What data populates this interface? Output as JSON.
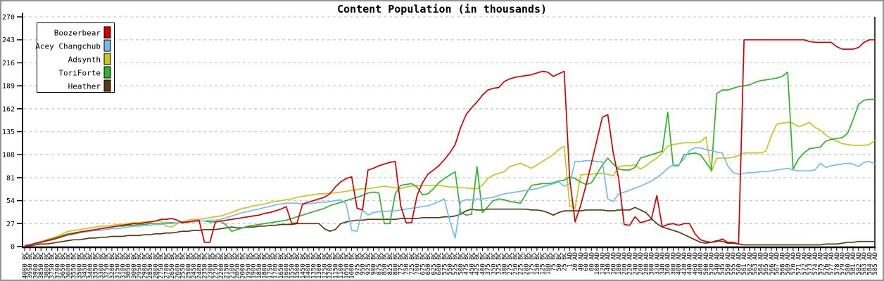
{
  "chart_data": {
    "type": "line",
    "title": "Content Population (in thousands)",
    "xlabel": "",
    "ylabel": "",
    "ylim": [
      0,
      270
    ],
    "y_ticks": [
      0,
      27,
      54,
      81,
      108,
      135,
      162,
      189,
      216,
      243,
      270
    ],
    "grid": true,
    "legend_position": "top-left",
    "grid_color": "#c9c9c9",
    "axis_color": "#000000",
    "categories": [
      "4000 BC",
      "3950 BC",
      "3900 BC",
      "3850 BC",
      "3800 BC",
      "3750 BC",
      "3700 BC",
      "3650 BC",
      "3600 BC",
      "3550 BC",
      "3500 BC",
      "3450 BC",
      "3400 BC",
      "3350 BC",
      "3300 BC",
      "3250 BC",
      "3200 BC",
      "3150 BC",
      "3100 BC",
      "3050 BC",
      "3000 BC",
      "2950 BC",
      "2900 BC",
      "2850 BC",
      "2800 BC",
      "2750 BC",
      "2700 BC",
      "2650 BC",
      "2600 BC",
      "2550 BC",
      "2500 BC",
      "2450 BC",
      "2400 BC",
      "2350 BC",
      "2300 BC",
      "2250 BC",
      "2200 BC",
      "2150 BC",
      "2100 BC",
      "2050 BC",
      "2000 BC",
      "1950 BC",
      "1900 BC",
      "1850 BC",
      "1800 BC",
      "1750 BC",
      "1700 BC",
      "1650 BC",
      "1600 BC",
      "1550 BC",
      "1500 BC",
      "1450 BC",
      "1400 BC",
      "1350 BC",
      "1300 BC",
      "1250 BC",
      "1200 BC",
      "1150 BC",
      "1100 BC",
      "1050 BC",
      "1000 BC",
      "975 BC",
      "950 BC",
      "925 BC",
      "900 BC",
      "875 BC",
      "850 BC",
      "825 BC",
      "800 BC",
      "775 BC",
      "750 BC",
      "725 BC",
      "700 BC",
      "675 BC",
      "650 BC",
      "625 BC",
      "600 BC",
      "575 BC",
      "550 BC",
      "525 BC",
      "500 BC",
      "475 BC",
      "450 BC",
      "425 BC",
      "400 BC",
      "375 BC",
      "350 BC",
      "325 BC",
      "300 BC",
      "275 BC",
      "250 BC",
      "225 BC",
      "200 BC",
      "175 BC",
      "150 BC",
      "125 BC",
      "100 BC",
      "75 BC",
      "50 BC",
      "25 BC",
      "1 AD",
      "20 AD",
      "40 AD",
      "60 AD",
      "80 AD",
      "100 AD",
      "120 AD",
      "140 AD",
      "160 AD",
      "180 AD",
      "200 AD",
      "220 AD",
      "240 AD",
      "260 AD",
      "280 AD",
      "300 AD",
      "320 AD",
      "340 AD",
      "360 AD",
      "380 AD",
      "400 AD",
      "420 AD",
      "440 AD",
      "460 AD",
      "480 AD",
      "500 AD",
      "520 AD",
      "540 AD",
      "545 AD",
      "550 AD",
      "555 AD",
      "560 AD",
      "561 AD",
      "562 AD",
      "563 AD",
      "564 AD",
      "565 AD",
      "566 AD",
      "567 AD",
      "568 AD",
      "569 AD",
      "570 AD",
      "571 AD",
      "572 AD",
      "573 AD",
      "574 AD",
      "575 AD",
      "576 AD",
      "577 AD",
      "578 AD",
      "579 AD",
      "580 AD",
      "581 AD",
      "582 AD",
      "583 AD",
      "584 AD",
      "585 AD"
    ],
    "series": [
      {
        "name": "Boozerbear",
        "color": "#d40000",
        "values": [
          1,
          2,
          4,
          5,
          7,
          8,
          10,
          12,
          14,
          15,
          17,
          18,
          19,
          20,
          21,
          22,
          23,
          24,
          25,
          26,
          27,
          27,
          28,
          29,
          30,
          32,
          32,
          33,
          31,
          28,
          29,
          30,
          31,
          5,
          5,
          29,
          30,
          31,
          32,
          33,
          34,
          35,
          36,
          37,
          39,
          40,
          42,
          44,
          47,
          27,
          28,
          50,
          52,
          54,
          56,
          58,
          62,
          70,
          76,
          80,
          82,
          45,
          43,
          90,
          92,
          95,
          97,
          99,
          100,
          48,
          28,
          28,
          60,
          75,
          85,
          90,
          95,
          102,
          110,
          120,
          140,
          155,
          163,
          170,
          178,
          184,
          186,
          187,
          194,
          197,
          199,
          200,
          201,
          202,
          204,
          206,
          205,
          200,
          203,
          206,
          80,
          29,
          48,
          72,
          98,
          125,
          152,
          155,
          110,
          80,
          26,
          25,
          35,
          28,
          30,
          32,
          60,
          23,
          26,
          27,
          25,
          27,
          27,
          15,
          8,
          6,
          5,
          6,
          9,
          5,
          5,
          3,
          243,
          243,
          243,
          243,
          243,
          243,
          243,
          243,
          243,
          243,
          243,
          243,
          241,
          240,
          240,
          240,
          240,
          235,
          232,
          232,
          232,
          234,
          240,
          243,
          243
        ]
      },
      {
        "name": "Acey Changchub",
        "color": "#74bdea",
        "values": [
          1,
          2,
          3,
          5,
          6,
          8,
          10,
          12,
          14,
          15,
          16,
          17,
          18,
          19,
          19,
          20,
          21,
          21,
          22,
          23,
          24,
          24,
          25,
          25,
          26,
          26,
          27,
          27,
          28,
          28,
          29,
          29,
          30,
          30,
          31,
          31,
          32,
          34,
          36,
          38,
          40,
          41,
          43,
          44,
          46,
          47,
          49,
          50,
          51,
          51,
          51,
          50,
          50,
          51,
          52,
          52,
          53,
          54,
          55,
          50,
          19,
          18,
          43,
          37,
          40,
          41,
          41,
          42,
          42,
          43,
          44,
          45,
          46,
          47,
          48,
          50,
          53,
          56,
          30,
          10,
          53,
          55,
          55,
          56,
          56,
          57,
          58,
          60,
          62,
          63,
          64,
          65,
          66,
          67,
          68,
          70,
          72,
          74,
          76,
          71,
          74,
          100,
          100,
          101,
          101,
          100,
          100,
          56,
          53,
          62,
          64,
          66,
          69,
          71,
          74,
          77,
          81,
          86,
          92,
          96,
          96,
          103,
          113,
          116,
          116,
          114,
          113,
          111,
          110,
          95,
          87,
          85,
          86,
          87,
          87,
          88,
          88,
          89,
          90,
          91,
          92,
          90,
          89,
          89,
          89,
          90,
          98,
          93,
          95,
          96,
          97,
          98,
          97,
          94,
          99,
          100,
          97
        ]
      },
      {
        "name": "Adsynth",
        "color": "#cfc21d",
        "values": [
          1,
          2,
          4,
          6,
          8,
          10,
          12,
          15,
          18,
          19,
          20,
          21,
          22,
          23,
          24,
          24,
          25,
          26,
          26,
          27,
          28,
          28,
          29,
          29,
          30,
          30,
          24,
          23,
          27,
          29,
          31,
          32,
          32,
          33,
          34,
          35,
          36,
          38,
          40,
          43,
          45,
          46,
          48,
          49,
          50,
          52,
          53,
          54,
          55,
          56,
          58,
          59,
          60,
          61,
          62,
          62,
          63,
          63,
          64,
          65,
          66,
          67,
          68,
          68,
          69,
          70,
          71,
          70,
          69,
          68,
          70,
          71,
          72,
          72,
          72,
          72,
          72,
          71,
          70,
          70,
          69,
          69,
          68,
          68,
          72,
          80,
          84,
          86,
          88,
          94,
          96,
          98,
          95,
          92,
          96,
          100,
          104,
          108,
          114,
          118,
          48,
          45,
          84,
          85,
          85,
          86,
          86,
          85,
          83,
          94,
          95,
          95,
          96,
          91,
          95,
          100,
          104,
          110,
          118,
          120,
          121,
          122,
          122,
          122,
          123,
          129,
          88,
          104,
          104,
          104,
          105,
          107,
          110,
          110,
          110,
          110,
          112,
          130,
          144,
          145,
          146,
          145,
          141,
          143,
          146,
          140,
          137,
          131,
          127,
          124,
          121,
          120,
          119,
          119,
          119,
          120,
          125
        ]
      },
      {
        "name": "ToriForte",
        "color": "#2cb52c",
        "values": [
          1,
          2,
          3,
          5,
          7,
          9,
          11,
          13,
          15,
          16,
          17,
          18,
          19,
          20,
          21,
          22,
          23,
          24,
          24,
          25,
          25,
          26,
          26,
          27,
          27,
          27,
          28,
          28,
          28,
          29,
          29,
          30,
          30,
          30,
          29,
          29,
          30,
          25,
          18,
          20,
          22,
          24,
          25,
          26,
          27,
          28,
          29,
          30,
          31,
          33,
          35,
          37,
          39,
          41,
          43,
          45,
          48,
          50,
          52,
          54,
          56,
          58,
          60,
          63,
          64,
          63,
          27,
          27,
          62,
          72,
          73,
          74,
          70,
          61,
          62,
          68,
          75,
          80,
          84,
          88,
          40,
          37,
          38,
          94,
          40,
          47,
          54,
          56,
          55,
          53,
          52,
          51,
          62,
          72,
          73,
          74,
          74,
          75,
          77,
          78,
          82,
          80,
          76,
          73,
          75,
          85,
          96,
          104,
          97,
          91,
          90,
          90,
          93,
          104,
          106,
          108,
          110,
          112,
          158,
          95,
          95,
          108,
          109,
          110,
          108,
          99,
          90,
          180,
          184,
          184,
          186,
          188,
          189,
          190,
          193,
          195,
          196,
          197,
          198,
          200,
          205,
          91,
          103,
          110,
          115,
          116,
          117,
          124,
          126,
          127,
          128,
          133,
          149,
          167,
          172,
          173,
          173
        ]
      },
      {
        "name": "Heather",
        "color": "#5a3a12",
        "values": [
          0,
          1,
          2,
          3,
          3,
          4,
          5,
          6,
          7,
          8,
          8,
          9,
          10,
          10,
          11,
          11,
          12,
          12,
          12,
          13,
          13,
          13,
          14,
          14,
          15,
          15,
          16,
          16,
          17,
          18,
          18,
          19,
          19,
          20,
          20,
          20,
          21,
          22,
          23,
          22,
          22,
          23,
          23,
          24,
          24,
          25,
          25,
          26,
          26,
          26,
          27,
          27,
          27,
          27,
          27,
          21,
          18,
          20,
          27,
          29,
          30,
          31,
          31,
          32,
          32,
          32,
          32,
          32,
          32,
          33,
          33,
          33,
          33,
          34,
          34,
          34,
          34,
          35,
          35,
          36,
          38,
          42,
          44,
          43,
          43,
          44,
          44,
          44,
          44,
          44,
          44,
          44,
          44,
          43,
          43,
          42,
          40,
          37,
          40,
          42,
          42,
          42,
          42,
          43,
          43,
          43,
          43,
          42,
          42,
          43,
          43,
          43,
          46,
          43,
          40,
          33,
          27,
          23,
          21,
          19,
          17,
          14,
          11,
          8,
          5,
          4,
          5,
          7,
          6,
          4,
          4,
          3,
          2,
          2,
          2,
          2,
          2,
          2,
          2,
          2,
          2,
          2,
          2,
          2,
          2,
          2,
          2,
          3,
          3,
          3,
          4,
          5,
          5,
          6,
          6,
          6,
          6
        ]
      }
    ]
  }
}
